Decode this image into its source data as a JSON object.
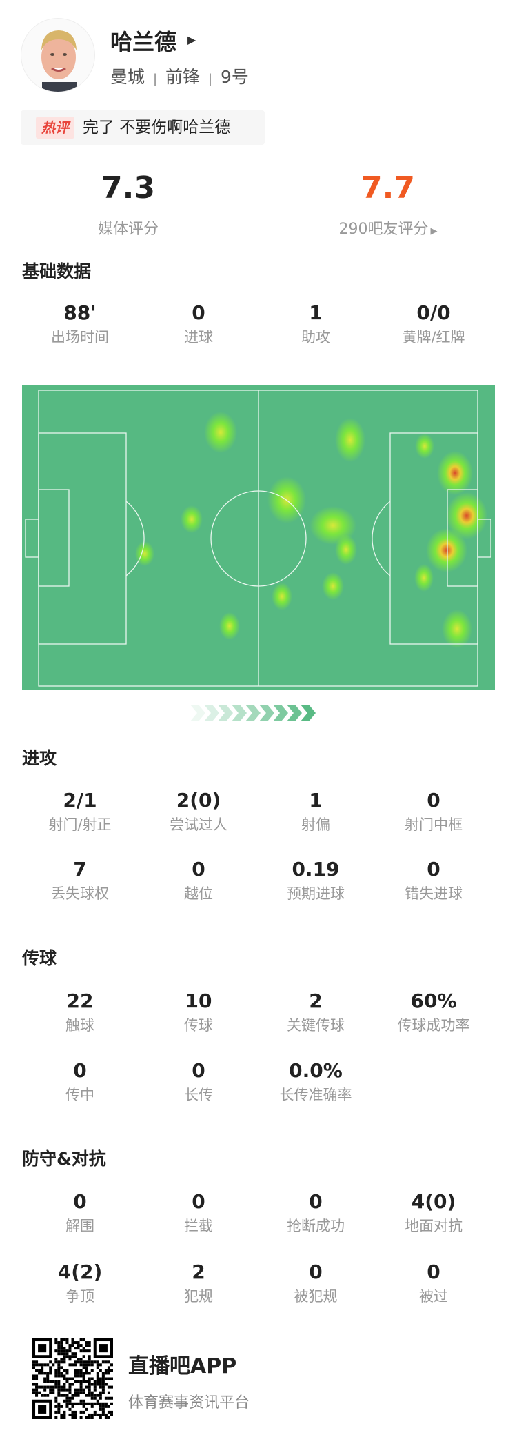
{
  "player": {
    "name": "哈兰德",
    "team": "曼城",
    "position": "前锋",
    "number": "9号",
    "separator": "|"
  },
  "hot_comment": {
    "tag": "热评",
    "text": "完了 不要伤啊哈兰德"
  },
  "ratings": {
    "media": {
      "value": "7.3",
      "label": "媒体评分",
      "color": "#222222"
    },
    "fans": {
      "value": "7.7",
      "label": "290吧友评分",
      "color": "#f05a22"
    }
  },
  "sections": {
    "basic": {
      "title": "基础数据",
      "items": [
        {
          "value": "88'",
          "label": "出场时间"
        },
        {
          "value": "0",
          "label": "进球"
        },
        {
          "value": "1",
          "label": "助攻"
        },
        {
          "value": "0/0",
          "label": "黄牌/红牌"
        }
      ]
    },
    "attack": {
      "title": "进攻",
      "items": [
        {
          "value": "2/1",
          "label": "射门/射正"
        },
        {
          "value": "2(0)",
          "label": "尝试过人"
        },
        {
          "value": "1",
          "label": "射偏"
        },
        {
          "value": "0",
          "label": "射门中框"
        },
        {
          "value": "7",
          "label": "丢失球权"
        },
        {
          "value": "0",
          "label": "越位"
        },
        {
          "value": "0.19",
          "label": "预期进球"
        },
        {
          "value": "0",
          "label": "错失进球"
        }
      ]
    },
    "passing": {
      "title": "传球",
      "items": [
        {
          "value": "22",
          "label": "触球"
        },
        {
          "value": "10",
          "label": "传球"
        },
        {
          "value": "2",
          "label": "关键传球"
        },
        {
          "value": "60%",
          "label": "传球成功率"
        },
        {
          "value": "0",
          "label": "传中"
        },
        {
          "value": "0",
          "label": "长传"
        },
        {
          "value": "0.0%",
          "label": "长传准确率"
        }
      ]
    },
    "defense": {
      "title": "防守&对抗",
      "items": [
        {
          "value": "0",
          "label": "解围"
        },
        {
          "value": "0",
          "label": "拦截"
        },
        {
          "value": "0",
          "label": "抢断成功"
        },
        {
          "value": "4(0)",
          "label": "地面对抗"
        },
        {
          "value": "4(2)",
          "label": "争顶"
        },
        {
          "value": "2",
          "label": "犯规"
        },
        {
          "value": "0",
          "label": "被犯规"
        },
        {
          "value": "0",
          "label": "被过"
        }
      ]
    }
  },
  "heatmap": {
    "pitch_color": "#56b982",
    "line_color": "#ffffff",
    "attack_direction": "right"
  },
  "footer": {
    "app_name": "直播吧APP",
    "tagline": "体育赛事资讯平台"
  }
}
